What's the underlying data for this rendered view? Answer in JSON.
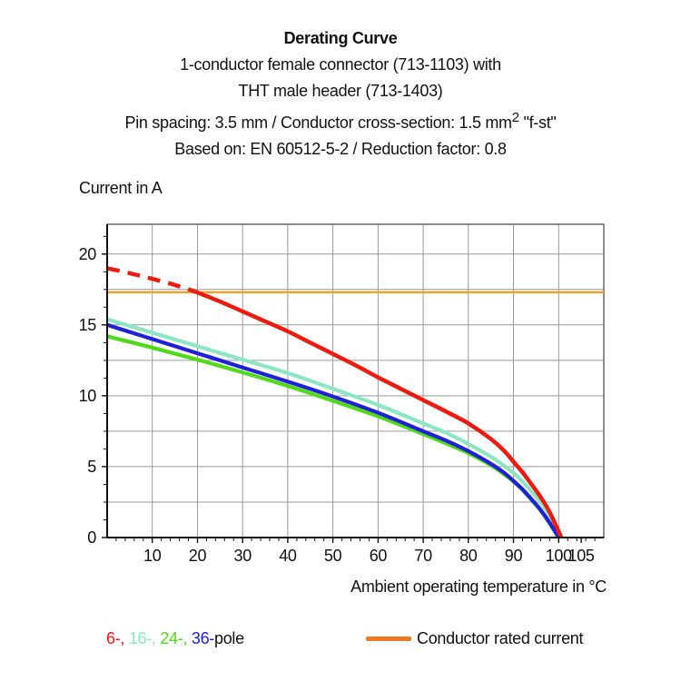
{
  "title_block": {
    "title": "Derating Curve",
    "subtitle_line1": "1-conductor female connector (713-1103) with",
    "subtitle_line2": "THT male header (713-1403)",
    "spec_line": {
      "prefix": "Pin spacing: 3.5 mm / Conductor cross-section: 1.5 mm",
      "sup": "2",
      "suffix": " \"f-st\""
    },
    "basis_line": "Based on: EN 60512-5-2 / Reduction factor: 0.8"
  },
  "chart_data": {
    "type": "line",
    "ylabel": "Current in A",
    "xlabel": "Ambient operating temperature in °C",
    "x_range": [
      0,
      110
    ],
    "y_range": [
      0,
      22.1
    ],
    "x_ticks_labeled": [
      10,
      20,
      30,
      40,
      50,
      60,
      70,
      80,
      90,
      100,
      105
    ],
    "y_ticks_labeled": [
      0,
      5,
      10,
      15,
      20
    ],
    "grid": {
      "x_step": 10,
      "y_step": 2.5,
      "x_minor_tick_step": 2,
      "y_minor_tick_step": 1.25,
      "color": "#9a9a9a",
      "frame_color": "#444444",
      "axis_color": "#111111"
    },
    "rated_current_line": {
      "y": 17.3,
      "color": "#F5A12E",
      "width": 2.5
    },
    "series": [
      {
        "name": "16-pole",
        "color": "#8CE6C3",
        "width": 4.2,
        "dashed": false,
        "points": [
          [
            0,
            15.4
          ],
          [
            10,
            14.45
          ],
          [
            20,
            13.5
          ],
          [
            30,
            12.55
          ],
          [
            40,
            11.6
          ],
          [
            50,
            10.5
          ],
          [
            60,
            9.35
          ],
          [
            70,
            8.05
          ],
          [
            75,
            7.4
          ],
          [
            80,
            6.6
          ],
          [
            85,
            5.7
          ],
          [
            88,
            5.05
          ],
          [
            90,
            4.55
          ],
          [
            92,
            3.95
          ],
          [
            94,
            3.25
          ],
          [
            96,
            2.45
          ],
          [
            98,
            1.55
          ],
          [
            100.3,
            0
          ]
        ]
      },
      {
        "name": "24-pole",
        "color": "#4FD916",
        "width": 4.2,
        "dashed": false,
        "points": [
          [
            0,
            14.2
          ],
          [
            10,
            13.4
          ],
          [
            20,
            12.55
          ],
          [
            30,
            11.65
          ],
          [
            40,
            10.7
          ],
          [
            50,
            9.65
          ],
          [
            60,
            8.55
          ],
          [
            70,
            7.3
          ],
          [
            75,
            6.65
          ],
          [
            80,
            5.95
          ],
          [
            85,
            5.1
          ],
          [
            88,
            4.45
          ],
          [
            90,
            3.95
          ],
          [
            92,
            3.35
          ],
          [
            94,
            2.65
          ],
          [
            96,
            1.9
          ],
          [
            98,
            1.0
          ],
          [
            100,
            0
          ]
        ]
      },
      {
        "name": "36-pole",
        "color": "#2020D9",
        "width": 4.2,
        "dashed": false,
        "points": [
          [
            0,
            15.0
          ],
          [
            10,
            14.0
          ],
          [
            20,
            13.0
          ],
          [
            30,
            12.0
          ],
          [
            40,
            11.0
          ],
          [
            50,
            9.95
          ],
          [
            60,
            8.8
          ],
          [
            70,
            7.5
          ],
          [
            75,
            6.85
          ],
          [
            80,
            6.1
          ],
          [
            85,
            5.2
          ],
          [
            88,
            4.55
          ],
          [
            90,
            4.0
          ],
          [
            92,
            3.4
          ],
          [
            94,
            2.7
          ],
          [
            96,
            1.95
          ],
          [
            98,
            1.05
          ],
          [
            100,
            0
          ]
        ]
      },
      {
        "name": "6-pole-dashed",
        "color": "#EC1B0F",
        "width": 4.5,
        "dashed": true,
        "points": [
          [
            0,
            19.0
          ],
          [
            5,
            18.65
          ],
          [
            10,
            18.25
          ],
          [
            15,
            17.82
          ],
          [
            19.5,
            17.35
          ]
        ]
      },
      {
        "name": "6-pole",
        "color": "#EC1B0F",
        "width": 4.5,
        "dashed": false,
        "points": [
          [
            19.5,
            17.35
          ],
          [
            25,
            16.65
          ],
          [
            30,
            15.95
          ],
          [
            35,
            15.25
          ],
          [
            40,
            14.55
          ],
          [
            45,
            13.75
          ],
          [
            50,
            12.95
          ],
          [
            55,
            12.15
          ],
          [
            60,
            11.3
          ],
          [
            65,
            10.5
          ],
          [
            70,
            9.7
          ],
          [
            75,
            8.9
          ],
          [
            80,
            8.05
          ],
          [
            85,
            6.95
          ],
          [
            88,
            6.1
          ],
          [
            90,
            5.35
          ],
          [
            92,
            4.6
          ],
          [
            94,
            3.75
          ],
          [
            96,
            2.85
          ],
          [
            98,
            1.8
          ],
          [
            100.6,
            0
          ]
        ]
      }
    ]
  },
  "legend": {
    "pole_items": [
      {
        "label": "6-,",
        "color": "#EC1B0F"
      },
      {
        "label": "16-,",
        "color": "#8CE6C3"
      },
      {
        "label": "24-,",
        "color": "#4FD916"
      },
      {
        "label": "36-",
        "color": "#2020D9"
      }
    ],
    "pole_suffix": "pole",
    "rated": {
      "label": "Conductor rated current",
      "swatch_color": "#EF7A22"
    }
  }
}
